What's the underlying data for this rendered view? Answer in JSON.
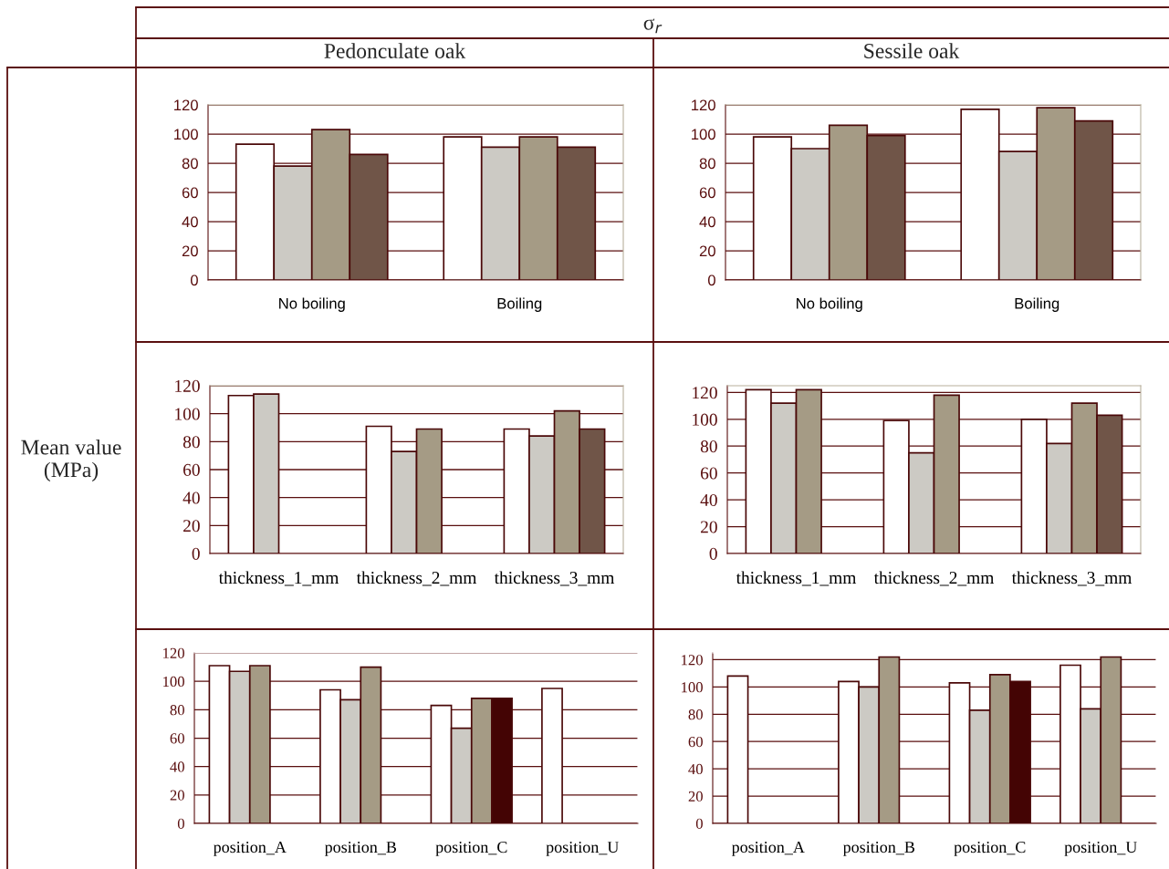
{
  "chart_data": [
    {
      "type": "bar",
      "annotations": [
        "σ$_{r}$"
      ],
      "title": "Pedonculate oak",
      "categories": [
        "No boiling",
        "Boiling"
      ],
      "ylim": [
        0,
        120
      ],
      "yticks": [
        0,
        20,
        40,
        60,
        80,
        100,
        120
      ],
      "grid": "y",
      "legend": false,
      "series": [
        {
          "color": "#ffffff",
          "values": [
            93,
            98
          ]
        },
        {
          "color": "#cccac4",
          "values": [
            78,
            91
          ]
        },
        {
          "color": "#a59b85",
          "values": [
            103,
            98
          ]
        },
        {
          "color": "#705548",
          "values": [
            86,
            91
          ]
        }
      ]
    },
    {
      "type": "bar",
      "title": "Sessile oak",
      "categories": [
        "No boiling",
        "Boiling"
      ],
      "ylim": [
        0,
        120
      ],
      "yticks": [
        0,
        20,
        40,
        60,
        80,
        100,
        120
      ],
      "grid": "y",
      "legend": false,
      "series": [
        {
          "color": "#ffffff",
          "values": [
            98,
            117
          ]
        },
        {
          "color": "#cccac4",
          "values": [
            90,
            88
          ]
        },
        {
          "color": "#a59b85",
          "values": [
            106,
            118
          ]
        },
        {
          "color": "#705548",
          "values": [
            99,
            109
          ]
        }
      ]
    },
    {
      "type": "bar",
      "ylabel": "Mean value (MPa)",
      "categories": [
        "thickness_1_mm",
        "thickness_2_mm",
        "thickness_3_mm"
      ],
      "ylim": [
        0,
        120
      ],
      "yticks": [
        0,
        20,
        40,
        60,
        80,
        100,
        120
      ],
      "grid": "y",
      "legend": false,
      "series": [
        {
          "color": "#ffffff",
          "values": [
            113,
            91,
            89
          ]
        },
        {
          "color": "#cccac4",
          "values": [
            114,
            73,
            84
          ]
        },
        {
          "color": "#a59b85",
          "values": [
            null,
            89,
            102
          ]
        },
        {
          "color": "#705548",
          "values": [
            null,
            null,
            89
          ]
        }
      ]
    },
    {
      "type": "bar",
      "categories": [
        "thickness_1_mm",
        "thickness_2_mm",
        "thickness_3_mm"
      ],
      "ylim": [
        0,
        125
      ],
      "yticks": [
        0,
        20,
        40,
        60,
        80,
        100,
        120
      ],
      "grid": "y",
      "legend": false,
      "series": [
        {
          "color": "#ffffff",
          "values": [
            122,
            99,
            100
          ]
        },
        {
          "color": "#cccac4",
          "values": [
            112,
            75,
            82
          ]
        },
        {
          "color": "#a59b85",
          "values": [
            122,
            118,
            112
          ]
        },
        {
          "color": "#705548",
          "values": [
            null,
            null,
            103
          ]
        }
      ]
    },
    {
      "type": "bar",
      "categories": [
        "position_A",
        "position_B",
        "position_C",
        "position_U"
      ],
      "ylim": [
        0,
        120
      ],
      "yticks": [
        0,
        20,
        40,
        60,
        80,
        100,
        120
      ],
      "grid": "y",
      "legend": false,
      "series": [
        {
          "color": "#ffffff",
          "values": [
            111,
            94,
            83,
            95
          ]
        },
        {
          "color": "#cccac4",
          "values": [
            107,
            87,
            67,
            null
          ]
        },
        {
          "color": "#a59b85",
          "values": [
            111,
            110,
            88,
            null
          ]
        },
        {
          "color": "#440404",
          "values": [
            null,
            null,
            88,
            null
          ]
        }
      ]
    },
    {
      "type": "bar",
      "categories": [
        "position_A",
        "position_B",
        "position_C",
        "position_U"
      ],
      "ylim": [
        0,
        125
      ],
      "yticks": [
        0,
        20,
        40,
        60,
        80,
        100,
        120
      ],
      "grid": "y",
      "legend": false,
      "series": [
        {
          "color": "#ffffff",
          "values": [
            108,
            104,
            103,
            116
          ]
        },
        {
          "color": "#cccac4",
          "values": [
            null,
            100,
            83,
            84
          ]
        },
        {
          "color": "#a59b85",
          "values": [
            null,
            122,
            109,
            122
          ]
        },
        {
          "color": "#440404",
          "values": [
            null,
            null,
            104,
            null
          ]
        }
      ]
    }
  ]
}
